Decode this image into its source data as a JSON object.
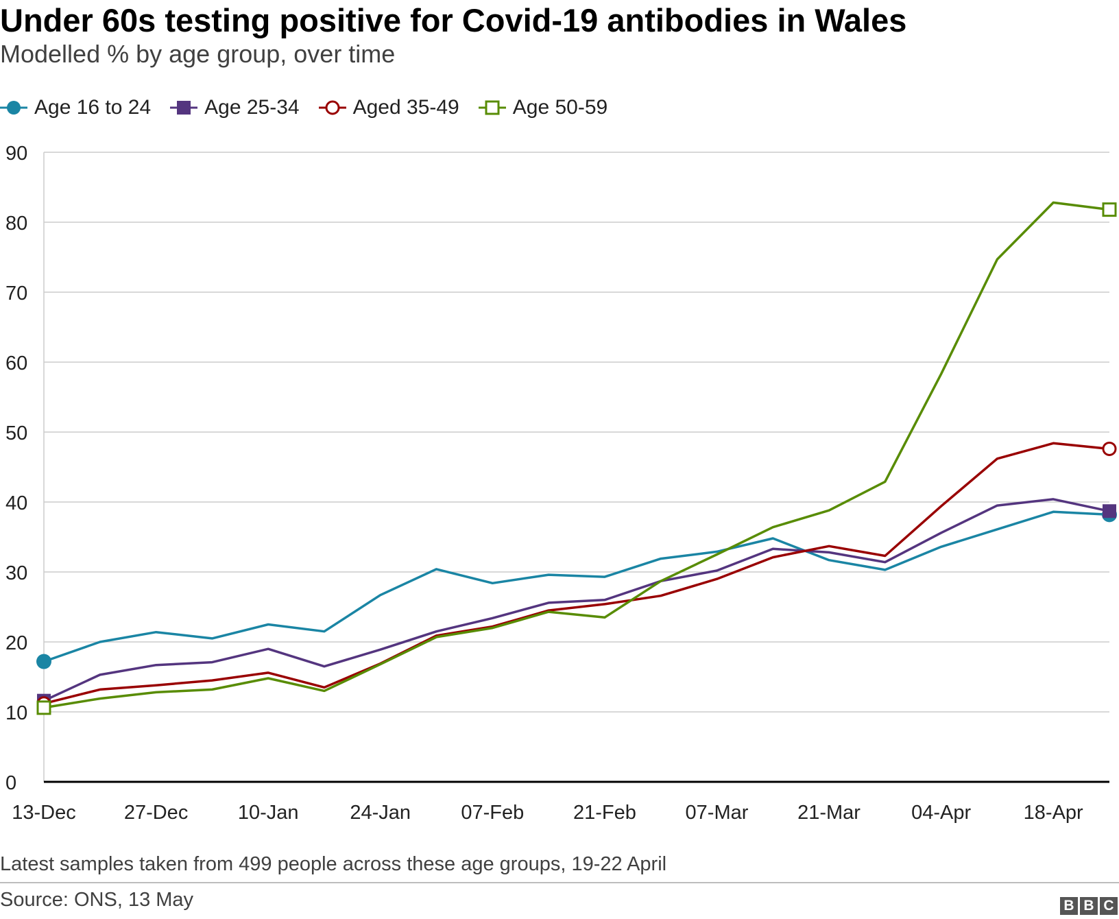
{
  "title": "Under 60s testing positive for Covid-19 antibodies in Wales",
  "subtitle": "Modelled % by age group, over time",
  "footnote": "Latest samples taken from 499 people across these age groups, 19-22 April",
  "source": "Source: ONS, 13 May",
  "logo": {
    "letters": [
      "B",
      "B",
      "C"
    ]
  },
  "colors": {
    "age_16_24": "#1a85a4",
    "age_25_34": "#54357f",
    "age_35_49": "#990000",
    "age_50_59": "#588c04",
    "grid": "#cccccc",
    "axis": "#000000"
  },
  "chart_data": {
    "type": "line",
    "title": "Under 60s testing positive for Covid-19 antibodies in Wales",
    "subtitle": "Modelled % by age group, over time",
    "xlabel": "",
    "ylabel": "",
    "x": [
      "13-Dec",
      "20-Dec",
      "27-Dec",
      "03-Jan",
      "10-Jan",
      "17-Jan",
      "24-Jan",
      "31-Jan",
      "07-Feb",
      "14-Feb",
      "21-Feb",
      "28-Feb",
      "07-Mar",
      "14-Mar",
      "21-Mar",
      "28-Mar",
      "04-Apr",
      "11-Apr",
      "18-Apr",
      "22-Apr"
    ],
    "x_tick_labels": [
      "13-Dec",
      "27-Dec",
      "10-Jan",
      "24-Jan",
      "07-Feb",
      "21-Feb",
      "07-Mar",
      "21-Mar",
      "04-Apr",
      "18-Apr"
    ],
    "ylim": [
      0,
      90
    ],
    "y_ticks": [
      0,
      10,
      20,
      30,
      40,
      50,
      60,
      70,
      80,
      90
    ],
    "grid": true,
    "legend_position": "top-left",
    "series": [
      {
        "name": "Age 16 to 24",
        "key": "age_16_24",
        "marker": "filled-circle",
        "values": [
          17.2,
          20.0,
          21.4,
          20.5,
          22.5,
          21.5,
          26.7,
          30.4,
          28.4,
          29.6,
          29.3,
          31.9,
          32.9,
          34.8,
          31.7,
          30.3,
          33.6,
          36.1,
          38.6,
          38.2
        ]
      },
      {
        "name": "Age 25-34",
        "key": "age_25_34",
        "marker": "filled-square",
        "values": [
          11.6,
          15.3,
          16.7,
          17.1,
          19.0,
          16.5,
          18.9,
          21.5,
          23.4,
          25.6,
          26.0,
          28.7,
          30.2,
          33.3,
          32.8,
          31.4,
          35.6,
          39.5,
          40.4,
          38.7
        ]
      },
      {
        "name": "Aged 35-49",
        "key": "age_35_49",
        "marker": "open-circle",
        "values": [
          11.2,
          13.2,
          13.8,
          14.5,
          15.6,
          13.5,
          16.9,
          20.9,
          22.2,
          24.5,
          25.4,
          26.6,
          29.0,
          32.1,
          33.7,
          32.3,
          39.4,
          46.2,
          48.4,
          47.6
        ]
      },
      {
        "name": "Age 50-59",
        "key": "age_50_59",
        "marker": "open-square",
        "values": [
          10.6,
          11.9,
          12.8,
          13.2,
          14.8,
          13.0,
          16.8,
          20.7,
          22.0,
          24.3,
          23.5,
          28.7,
          32.5,
          36.4,
          38.8,
          42.9,
          58.3,
          74.7,
          82.8,
          81.8
        ]
      }
    ]
  }
}
